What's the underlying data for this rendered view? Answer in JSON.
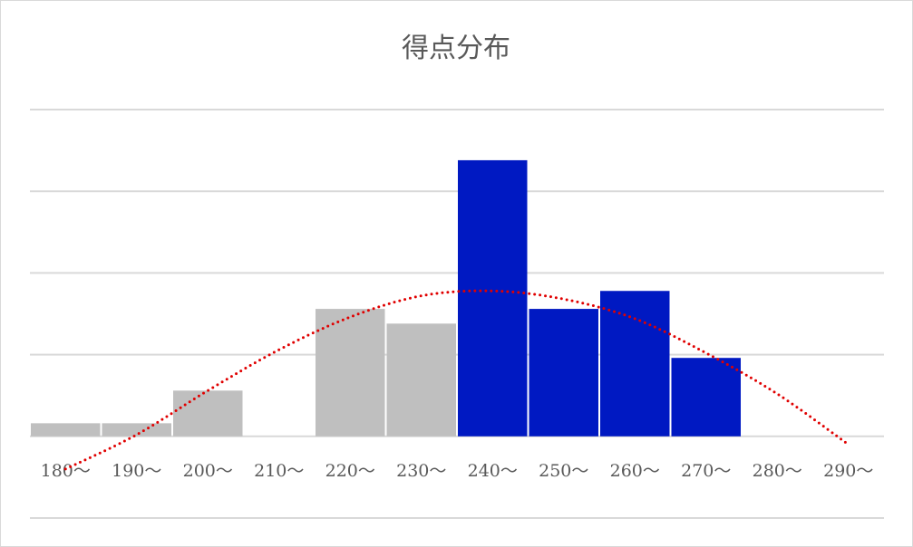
{
  "chart_data": {
    "type": "bar",
    "title": "得点分布",
    "categories": [
      "180～",
      "190～",
      "200～",
      "210～",
      "220～",
      "230～",
      "240～",
      "250～",
      "260～",
      "270～",
      "280～",
      "290～"
    ],
    "values": [
      0.8,
      0.8,
      2.8,
      0,
      7.8,
      6.9,
      16.9,
      7.8,
      8.9,
      4.8,
      0,
      0
    ],
    "colors": [
      "#bfbfbf",
      "#bfbfbf",
      "#bfbfbf",
      "#bfbfbf",
      "#bfbfbf",
      "#bfbfbf",
      "#0019c2",
      "#0019c2",
      "#0019c2",
      "#0019c2",
      "#0019c2",
      "#0019c2"
    ],
    "trendline": {
      "color": "#e00000",
      "values": [
        -2.0,
        0.1,
        2.8,
        5.3,
        7.3,
        8.6,
        8.9,
        8.4,
        7.2,
        5.1,
        2.6,
        -0.5
      ]
    },
    "ylim": [
      -5,
      20
    ],
    "yticks": [
      -5,
      0,
      5,
      10,
      15,
      20
    ],
    "grid": true
  }
}
